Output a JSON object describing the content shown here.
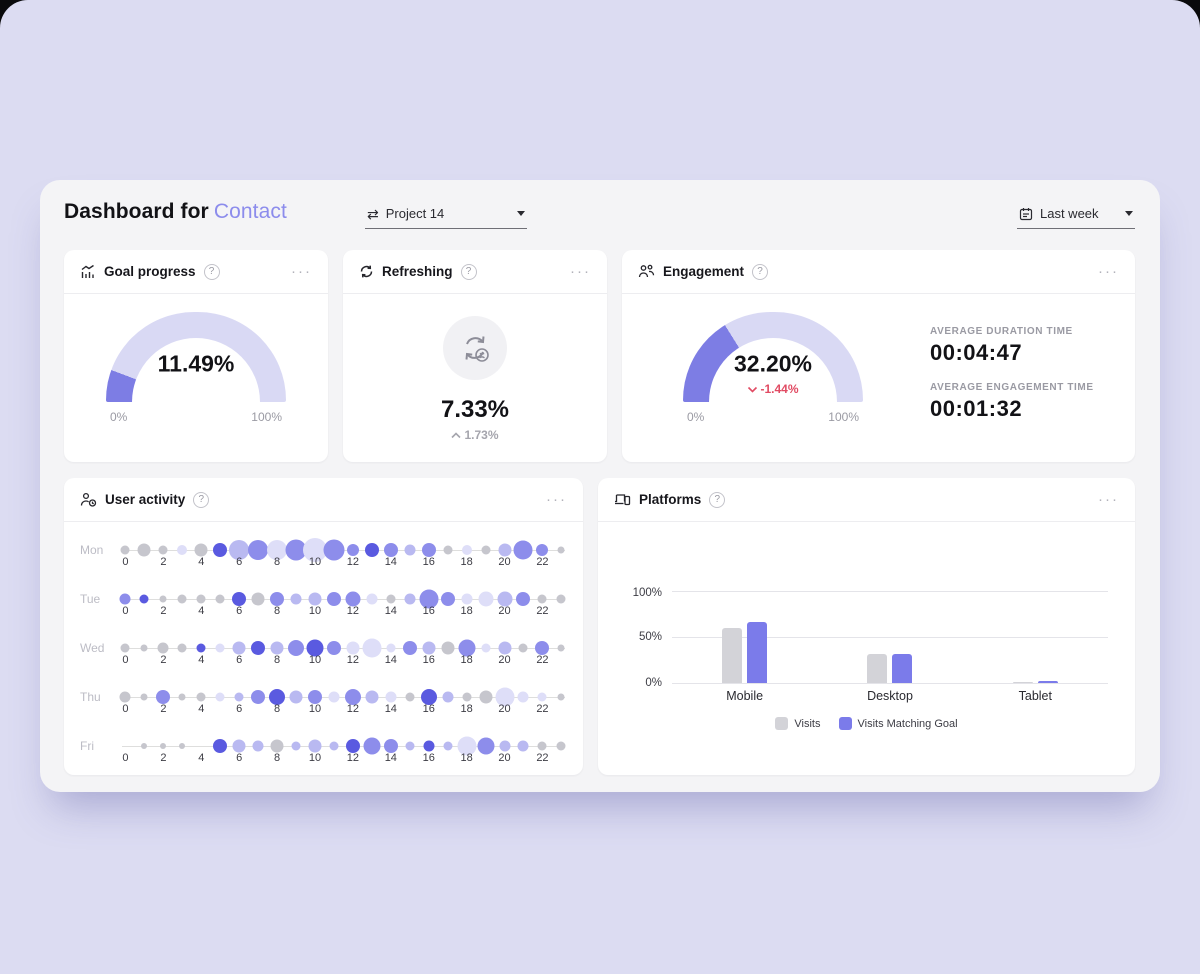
{
  "header": {
    "title_prefix": "Dashboard for",
    "title_highlight": "Contact",
    "project_selector": {
      "label": "Project 14"
    },
    "date_selector": {
      "label": "Last week"
    }
  },
  "icons": {
    "swap": "⇄",
    "kebab": "···",
    "help": "?"
  },
  "colors": {
    "accent_fill": "#7d7de4",
    "accent_track": "#d9d9f4",
    "highlight_text": "#8c8cec",
    "negative": "#e14b63",
    "muted": "#9a9aa3"
  },
  "cards": {
    "goal_progress": {
      "title": "Goal progress",
      "value_label": "11.49%",
      "min_label": "0%",
      "max_label": "100%"
    },
    "refreshing": {
      "title": "Refreshing",
      "value_label": "7.33%",
      "delta_label": "1.73%",
      "delta_direction": "up"
    },
    "engagement": {
      "title": "Engagement",
      "value_label": "32.20%",
      "delta_label": "-1.44%",
      "delta_direction": "down",
      "min_label": "0%",
      "max_label": "100%",
      "stats": [
        {
          "label": "AVERAGE DURATION TIME",
          "value": "00:04:47"
        },
        {
          "label": "AVERAGE ENGAGEMENT TIME",
          "value": "00:01:32"
        }
      ]
    },
    "user_activity": {
      "title": "User activity"
    },
    "platforms": {
      "title": "Platforms"
    }
  },
  "chart_data": [
    {
      "type": "gauge",
      "title": "Goal progress",
      "value": 11.49,
      "range": [
        0,
        100
      ],
      "unit": "%"
    },
    {
      "type": "gauge",
      "title": "Engagement",
      "value": 32.2,
      "range": [
        0,
        100
      ],
      "unit": "%",
      "delta": -1.44
    },
    {
      "type": "bubble-timeline",
      "title": "User activity",
      "x_hours_range": [
        0,
        23
      ],
      "x_tick_labels": [
        "0",
        "2",
        "4",
        "6",
        "8",
        "10",
        "12",
        "14",
        "16",
        "18",
        "20",
        "22"
      ],
      "color_map": {
        "g": "#c6c6cd",
        "p1": "#dedef8",
        "p2": "#b9b9f1",
        "p3": "#8d8deb",
        "p4": "#5a5ae0",
        "none": "transparent"
      },
      "rows": [
        {
          "day": "Mon",
          "sizes": [
            9,
            13,
            9,
            10,
            13,
            14,
            20,
            20,
            20,
            21,
            24,
            21,
            12,
            14,
            14,
            11,
            14,
            9,
            10,
            9,
            13,
            19,
            12,
            7
          ],
          "levels": [
            "g",
            "g",
            "g",
            "p1",
            "g",
            "p4",
            "p2",
            "p3",
            "p1",
            "p3",
            "p1",
            "p3",
            "p3",
            "p4",
            "p3",
            "p2",
            "p3",
            "g",
            "p1",
            "g",
            "p2",
            "p3",
            "p3",
            "g"
          ]
        },
        {
          "day": "Tue",
          "sizes": [
            11,
            9,
            7,
            9,
            9,
            9,
            14,
            13,
            14,
            11,
            13,
            14,
            15,
            11,
            9,
            11,
            19,
            14,
            11,
            15,
            15,
            14,
            9,
            9
          ],
          "levels": [
            "p3",
            "p4",
            "g",
            "g",
            "g",
            "g",
            "p4",
            "g",
            "p3",
            "p2",
            "p2",
            "p3",
            "p3",
            "p1",
            "g",
            "p2",
            "p3",
            "p3",
            "p1",
            "p1",
            "p2",
            "p3",
            "g",
            "g"
          ]
        },
        {
          "day": "Wed",
          "sizes": [
            9,
            7,
            11,
            9,
            9,
            9,
            13,
            14,
            13,
            16,
            17,
            14,
            13,
            19,
            9,
            14,
            13,
            13,
            17,
            9,
            13,
            9,
            14,
            7
          ],
          "levels": [
            "g",
            "g",
            "g",
            "g",
            "p4",
            "p1",
            "p2",
            "p4",
            "p2",
            "p3",
            "p4",
            "p3",
            "p1",
            "p1",
            "p1",
            "p3",
            "p2",
            "g",
            "p3",
            "p1",
            "p2",
            "g",
            "p3",
            "g"
          ]
        },
        {
          "day": "Thu",
          "sizes": [
            11,
            7,
            14,
            7,
            9,
            9,
            9,
            14,
            16,
            13,
            14,
            11,
            16,
            13,
            11,
            9,
            16,
            11,
            9,
            13,
            19,
            11,
            9,
            7
          ],
          "levels": [
            "g",
            "g",
            "p3",
            "g",
            "g",
            "p1",
            "p2",
            "p3",
            "p4",
            "p2",
            "p3",
            "p1",
            "p3",
            "p2",
            "p1",
            "g",
            "p4",
            "p2",
            "g",
            "g",
            "p1",
            "p1",
            "p1",
            "g"
          ]
        },
        {
          "day": "Fri",
          "sizes": [
            0,
            6,
            6,
            6,
            0,
            14,
            13,
            11,
            13,
            9,
            13,
            9,
            14,
            17,
            14,
            9,
            11,
            9,
            19,
            17,
            11,
            11,
            9,
            9
          ],
          "levels": [
            "none",
            "g",
            "g",
            "g",
            "none",
            "p4",
            "p2",
            "p2",
            "g",
            "p2",
            "p2",
            "p2",
            "p4",
            "p3",
            "p3",
            "p2",
            "p4",
            "p2",
            "p1",
            "p3",
            "p2",
            "p2",
            "g",
            "g"
          ]
        }
      ]
    },
    {
      "type": "bar",
      "title": "Platforms",
      "categories": [
        "Mobile",
        "Desktop",
        "Tablet"
      ],
      "series": [
        {
          "name": "Visits",
          "color": "#d3d3d8",
          "values": [
            60,
            31,
            0.5
          ]
        },
        {
          "name": "Visits Matching Goal",
          "color": "#7b7bea",
          "values": [
            66,
            32,
            2
          ]
        }
      ],
      "y_ticks": [
        "100%",
        "50%",
        "0%"
      ],
      "ylim": [
        0,
        100
      ],
      "grid": true,
      "legend_position": "bottom"
    }
  ]
}
